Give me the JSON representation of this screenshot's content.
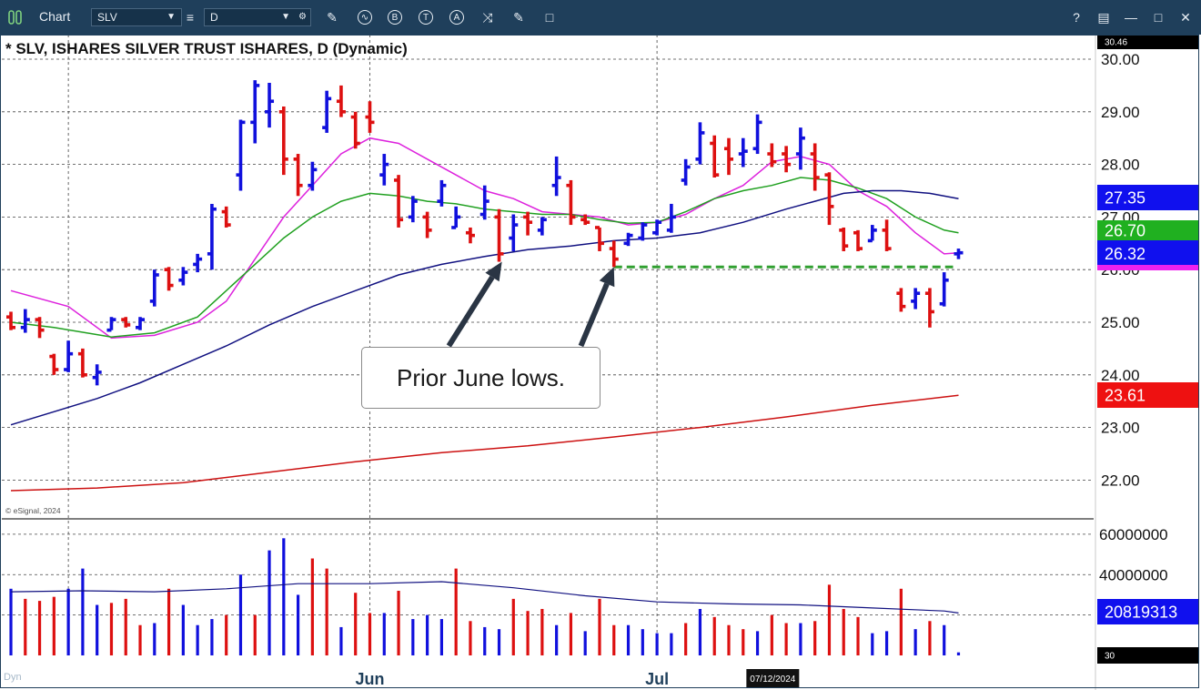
{
  "toolbar": {
    "title": "Chart",
    "symbol_value": "SLV",
    "interval_value": "D",
    "icons": [
      "pencil-icon",
      "wave-icon",
      "b-circle-icon",
      "t-circle-icon",
      "a-circle-icon",
      "fork-icon",
      "edit-icon",
      "comment-icon"
    ],
    "window_icons": [
      "help-icon",
      "layout-icon",
      "minimize-icon",
      "maximize-icon",
      "close-icon"
    ],
    "help_label": "?"
  },
  "status": {
    "dyn_label": "Dyn"
  },
  "annotation": {
    "text": "Prior June lows."
  },
  "chart_data": [
    {
      "type": "ohlc",
      "title": "* SLV, ISHARES SILVER TRUST ISHARES, D (Dynamic)",
      "copyright": "© eSignal, 2024",
      "ylim": [
        21.8,
        30.45
      ],
      "yticks": [
        22.0,
        23.0,
        24.0,
        25.0,
        26.0,
        27.0,
        28.0,
        29.0,
        30.0
      ],
      "ytick_labels": [
        "22.00",
        "23.00",
        "24.00",
        "25.00",
        "26.00",
        "27.00",
        "28.00",
        "29.00",
        "30.00"
      ],
      "xtick_labels": [
        {
          "label": "Jun",
          "bar_index": 25
        },
        {
          "label": "Jul",
          "bar_index": 45
        }
      ],
      "top_value_label": "30.46",
      "date_marker": {
        "label": "07/12/2024",
        "bar_index": 53
      },
      "colors": {
        "up": "#1010dd",
        "down": "#dd1010",
        "ma10": "#dd22dd",
        "ma20": "#20a020",
        "ma50": "#101080",
        "ma200": "#cc1010",
        "support": "#30a030"
      },
      "bars": [
        [
          25.1,
          25.2,
          24.85,
          24.9
        ],
        [
          24.9,
          25.25,
          24.8,
          25.05
        ],
        [
          25.05,
          25.1,
          24.7,
          24.85
        ],
        [
          24.35,
          24.4,
          24.0,
          24.1
        ],
        [
          24.1,
          24.65,
          24.05,
          24.4
        ],
        [
          24.4,
          24.5,
          23.95,
          24.0
        ],
        [
          23.95,
          24.2,
          23.8,
          24.05
        ],
        [
          24.85,
          25.1,
          24.85,
          25.05
        ],
        [
          25.05,
          25.1,
          24.9,
          24.95
        ],
        [
          24.9,
          25.1,
          24.85,
          25.05
        ],
        [
          25.4,
          26.0,
          25.3,
          25.9
        ],
        [
          26.0,
          26.05,
          25.6,
          25.7
        ],
        [
          25.8,
          26.05,
          25.7,
          25.95
        ],
        [
          26.1,
          26.3,
          25.95,
          26.2
        ],
        [
          26.3,
          27.25,
          26.0,
          27.15
        ],
        [
          27.1,
          27.2,
          26.8,
          26.85
        ],
        [
          27.8,
          28.85,
          27.5,
          28.8
        ],
        [
          28.8,
          29.6,
          28.4,
          29.5
        ],
        [
          29.0,
          29.55,
          28.7,
          29.2
        ],
        [
          29.0,
          29.1,
          27.8,
          28.1
        ],
        [
          28.1,
          28.2,
          27.4,
          27.6
        ],
        [
          27.6,
          28.05,
          27.5,
          27.9
        ],
        [
          28.7,
          29.4,
          28.6,
          29.25
        ],
        [
          29.2,
          29.5,
          28.9,
          29.0
        ],
        [
          28.9,
          29.0,
          28.3,
          28.4
        ],
        [
          28.9,
          29.2,
          28.6,
          28.8
        ],
        [
          27.8,
          28.2,
          27.6,
          28.0
        ],
        [
          27.7,
          27.8,
          26.8,
          26.95
        ],
        [
          27.0,
          27.4,
          26.9,
          27.3
        ],
        [
          27.0,
          27.1,
          26.6,
          26.75
        ],
        [
          27.3,
          27.7,
          27.2,
          27.6
        ],
        [
          26.8,
          27.2,
          26.8,
          27.0
        ],
        [
          26.7,
          26.8,
          26.5,
          26.65
        ],
        [
          27.05,
          27.6,
          26.95,
          27.3
        ],
        [
          27.0,
          27.15,
          26.15,
          26.3
        ],
        [
          26.6,
          27.05,
          26.35,
          26.85
        ],
        [
          27.0,
          27.1,
          26.65,
          26.9
        ],
        [
          26.75,
          27.0,
          26.65,
          26.95
        ],
        [
          27.6,
          28.15,
          27.4,
          27.75
        ],
        [
          27.6,
          27.7,
          26.85,
          27.0
        ],
        [
          26.95,
          27.05,
          26.85,
          26.9
        ],
        [
          26.8,
          26.8,
          26.35,
          26.5
        ],
        [
          26.4,
          26.55,
          26.05,
          26.2
        ],
        [
          26.5,
          26.7,
          26.45,
          26.65
        ],
        [
          26.6,
          26.9,
          26.55,
          26.85
        ],
        [
          26.7,
          26.95,
          26.65,
          26.9
        ],
        [
          26.75,
          27.25,
          26.7,
          27.0
        ],
        [
          27.7,
          28.1,
          27.6,
          27.95
        ],
        [
          28.1,
          28.8,
          28.0,
          28.6
        ],
        [
          28.4,
          28.55,
          27.75,
          27.8
        ],
        [
          28.3,
          28.5,
          27.8,
          28.1
        ],
        [
          28.2,
          28.5,
          27.95,
          28.25
        ],
        [
          28.3,
          28.95,
          28.2,
          28.8
        ],
        [
          28.2,
          28.4,
          27.95,
          28.05
        ],
        [
          28.2,
          28.35,
          27.85,
          28.0
        ],
        [
          28.2,
          28.7,
          27.9,
          28.5
        ],
        [
          28.2,
          28.4,
          27.5,
          27.75
        ],
        [
          27.8,
          27.85,
          26.85,
          27.2
        ],
        [
          26.75,
          26.8,
          26.35,
          26.45
        ],
        [
          26.7,
          26.75,
          26.35,
          26.4
        ],
        [
          26.55,
          26.85,
          26.55,
          26.75
        ],
        [
          26.75,
          26.95,
          26.35,
          26.4
        ],
        [
          25.55,
          25.65,
          25.2,
          25.3
        ],
        [
          25.4,
          25.65,
          25.25,
          25.55
        ],
        [
          25.55,
          25.65,
          24.9,
          25.2
        ],
        [
          25.35,
          25.95,
          25.3,
          25.8
        ],
        [
          26.3,
          26.4,
          26.2,
          26.32
        ]
      ],
      "ma": [
        {
          "name": "10",
          "value_label": "26.32",
          "values": [
            [
              0,
              25.6
            ],
            [
              4,
              25.3
            ],
            [
              7,
              24.7
            ],
            [
              10,
              24.75
            ],
            [
              13,
              25.0
            ],
            [
              15,
              25.4
            ],
            [
              17,
              26.2
            ],
            [
              19,
              27.0
            ],
            [
              21,
              27.6
            ],
            [
              23,
              28.2
            ],
            [
              25,
              28.5
            ],
            [
              27,
              28.4
            ],
            [
              29,
              28.1
            ],
            [
              31,
              27.8
            ],
            [
              33,
              27.5
            ],
            [
              35,
              27.35
            ],
            [
              37,
              27.1
            ],
            [
              39,
              27.05
            ],
            [
              41,
              27.0
            ],
            [
              43,
              26.85
            ],
            [
              45,
              26.9
            ],
            [
              47,
              27.05
            ],
            [
              49,
              27.35
            ],
            [
              51,
              27.6
            ],
            [
              53,
              28.05
            ],
            [
              55,
              28.15
            ],
            [
              57,
              28.0
            ],
            [
              59,
              27.5
            ],
            [
              61,
              27.2
            ],
            [
              63,
              26.7
            ],
            [
              65,
              26.3
            ],
            [
              66,
              26.32
            ]
          ]
        },
        {
          "name": "20",
          "value_label": "26.70",
          "values": [
            [
              0,
              25.0
            ],
            [
              3,
              24.9
            ],
            [
              7,
              24.72
            ],
            [
              10,
              24.8
            ],
            [
              13,
              25.1
            ],
            [
              15,
              25.6
            ],
            [
              17,
              26.1
            ],
            [
              19,
              26.6
            ],
            [
              21,
              27.0
            ],
            [
              23,
              27.3
            ],
            [
              25,
              27.45
            ],
            [
              27,
              27.4
            ],
            [
              29,
              27.3
            ],
            [
              31,
              27.25
            ],
            [
              33,
              27.15
            ],
            [
              35,
              27.1
            ],
            [
              37,
              27.05
            ],
            [
              39,
              27.05
            ],
            [
              41,
              26.95
            ],
            [
              43,
              26.88
            ],
            [
              45,
              26.9
            ],
            [
              47,
              27.1
            ],
            [
              49,
              27.35
            ],
            [
              51,
              27.5
            ],
            [
              53,
              27.6
            ],
            [
              55,
              27.75
            ],
            [
              57,
              27.7
            ],
            [
              59,
              27.55
            ],
            [
              61,
              27.35
            ],
            [
              63,
              27.0
            ],
            [
              65,
              26.75
            ],
            [
              66,
              26.7
            ]
          ]
        },
        {
          "name": "50",
          "value_label": "27.35",
          "values": [
            [
              0,
              23.05
            ],
            [
              3,
              23.3
            ],
            [
              6,
              23.55
            ],
            [
              9,
              23.85
            ],
            [
              12,
              24.2
            ],
            [
              15,
              24.55
            ],
            [
              18,
              24.95
            ],
            [
              21,
              25.3
            ],
            [
              24,
              25.6
            ],
            [
              27,
              25.9
            ],
            [
              30,
              26.1
            ],
            [
              33,
              26.25
            ],
            [
              36,
              26.38
            ],
            [
              39,
              26.45
            ],
            [
              42,
              26.55
            ],
            [
              45,
              26.6
            ],
            [
              48,
              26.7
            ],
            [
              51,
              26.9
            ],
            [
              54,
              27.15
            ],
            [
              56,
              27.3
            ],
            [
              58,
              27.45
            ],
            [
              60,
              27.5
            ],
            [
              62,
              27.5
            ],
            [
              64,
              27.45
            ],
            [
              66,
              27.35
            ]
          ]
        },
        {
          "name": "200",
          "value_label": "23.61",
          "values": [
            [
              0,
              21.8
            ],
            [
              6,
              21.85
            ],
            [
              12,
              21.95
            ],
            [
              18,
              22.15
            ],
            [
              24,
              22.35
            ],
            [
              30,
              22.52
            ],
            [
              36,
              22.65
            ],
            [
              42,
              22.82
            ],
            [
              48,
              23.0
            ],
            [
              54,
              23.2
            ],
            [
              60,
              23.42
            ],
            [
              66,
              23.61
            ]
          ]
        }
      ],
      "support_line": {
        "y": 26.05,
        "from_bar": 42,
        "to_bar": 66
      },
      "arrows": [
        {
          "from": [
            30.5,
            24.55
          ],
          "to": [
            34.2,
            26.15
          ]
        },
        {
          "from": [
            39.7,
            24.55
          ],
          "to": [
            42.0,
            26.05
          ]
        }
      ]
    },
    {
      "type": "bar",
      "series_label": "Volume",
      "ylim": [
        0,
        64000000
      ],
      "yticks": [
        20000000,
        40000000,
        60000000
      ],
      "ytick_labels": [
        "",
        "40000000",
        "60000000"
      ],
      "avg_value_label": "20819313",
      "bottom_label": "30",
      "values": [
        33000000,
        28000000,
        27000000,
        29000000,
        33000000,
        43000000,
        25000000,
        26000000,
        28000000,
        15000000,
        16000000,
        33000000,
        25000000,
        15000000,
        18000000,
        20000000,
        40000000,
        20000000,
        52000000,
        58000000,
        30000000,
        48000000,
        43000000,
        14000000,
        31000000,
        21000000,
        21000000,
        32000000,
        18000000,
        20000000,
        18000000,
        43000000,
        17000000,
        14000000,
        13000000,
        28000000,
        22000000,
        23000000,
        15000000,
        21000000,
        12000000,
        28000000,
        15000000,
        15000000,
        13000000,
        11000000,
        11000000,
        16000000,
        23000000,
        19000000,
        15000000,
        13000000,
        12000000,
        20000000,
        16000000,
        16000000,
        17000000,
        35000000,
        23000000,
        19000000,
        11000000,
        12000000,
        33000000,
        13000000,
        17000000,
        15000000,
        1500000
      ],
      "directions": [
        "u",
        "d",
        "d",
        "d",
        "u",
        "u",
        "u",
        "d",
        "d",
        "d",
        "u",
        "d",
        "u",
        "u",
        "u",
        "d",
        "u",
        "d",
        "u",
        "u",
        "u",
        "d",
        "d",
        "u",
        "d",
        "d",
        "u",
        "d",
        "u",
        "u",
        "u",
        "d",
        "d",
        "u",
        "u",
        "d",
        "d",
        "d",
        "u",
        "d",
        "u",
        "d",
        "d",
        "u",
        "u",
        "u",
        "u",
        "d",
        "u",
        "d",
        "d",
        "d",
        "u",
        "d",
        "d",
        "u",
        "d",
        "d",
        "d",
        "d",
        "u",
        "u",
        "d",
        "u",
        "d",
        "u",
        "u"
      ],
      "avg": [
        [
          0,
          31500000
        ],
        [
          5,
          32000000
        ],
        [
          10,
          31500000
        ],
        [
          15,
          33000000
        ],
        [
          20,
          35500000
        ],
        [
          25,
          35500000
        ],
        [
          30,
          36500000
        ],
        [
          35,
          33500000
        ],
        [
          40,
          29500000
        ],
        [
          45,
          26500000
        ],
        [
          50,
          25500000
        ],
        [
          55,
          25000000
        ],
        [
          60,
          23500000
        ],
        [
          65,
          22000000
        ],
        [
          66,
          21000000
        ]
      ]
    }
  ]
}
